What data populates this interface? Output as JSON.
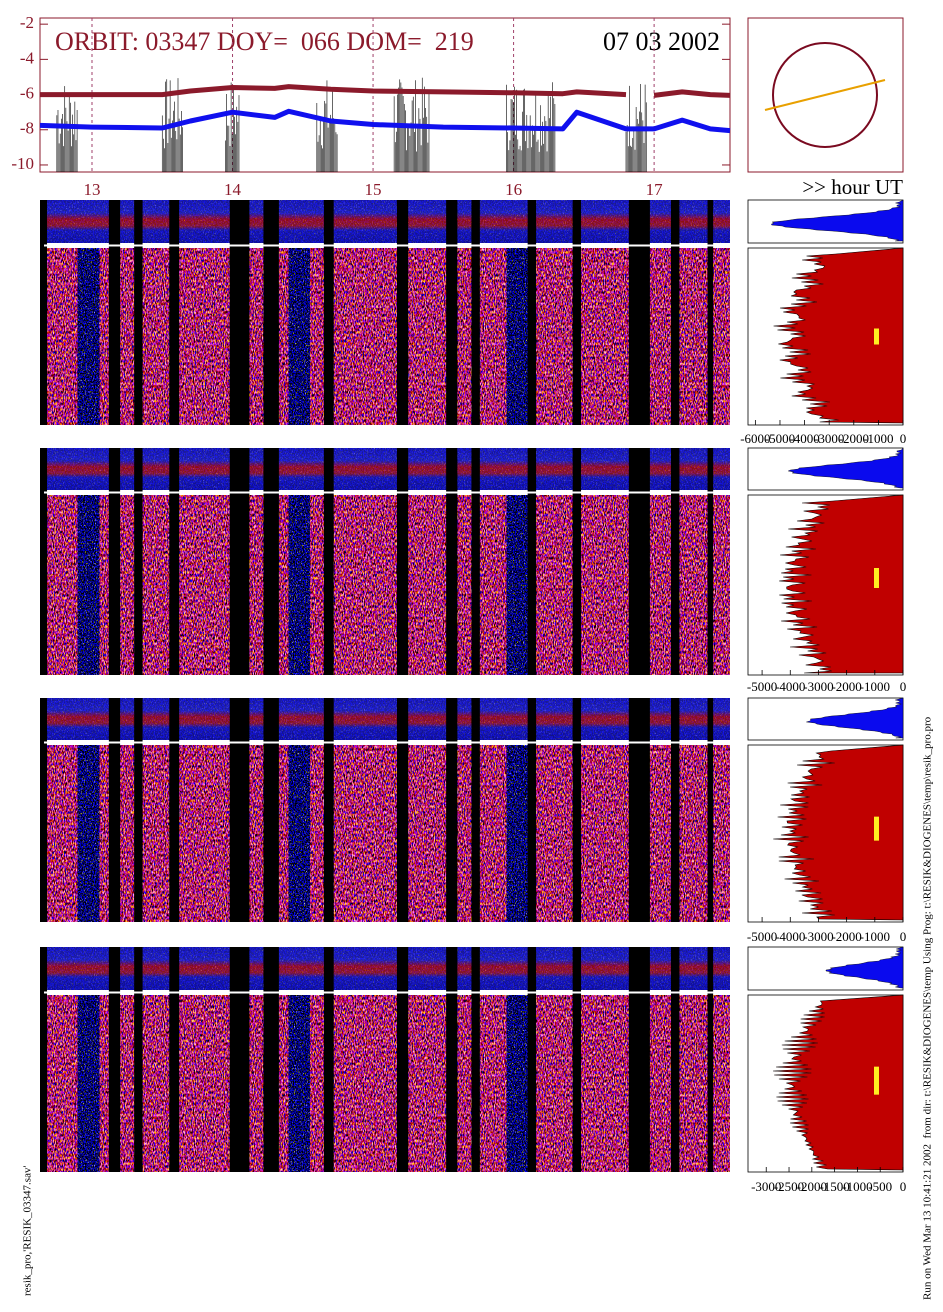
{
  "chart_data": [
    {
      "type": "line",
      "title": "ORBIT: 03347 DOY=  066 DOM=  219",
      "date": "07 03 2002",
      "x_label": ">> hour UT",
      "xlim": [
        12.63,
        17.54
      ],
      "xticks": [
        13,
        14,
        15,
        16,
        17
      ],
      "ylim": [
        -10.4,
        -1.65
      ],
      "yticks": [
        -2,
        -4,
        -6,
        -8,
        -10
      ],
      "grid": true,
      "x": [
        12.63,
        13.0,
        13.5,
        13.7,
        14.0,
        14.3,
        14.4,
        14.7,
        15.0,
        15.5,
        16.0,
        16.35,
        16.45,
        16.8,
        16.9,
        17.0,
        17.2,
        17.4,
        17.54
      ],
      "series": [
        {
          "color": "#8b1a2b",
          "values": [
            -6.0,
            -6.0,
            -6.0,
            -5.8,
            -5.6,
            -5.65,
            -5.55,
            -5.7,
            -5.8,
            -5.85,
            -5.9,
            -5.95,
            -5.85,
            -6.0,
            null,
            -6.05,
            -5.85,
            -6.0,
            -6.05
          ]
        },
        {
          "color": "#1010ee",
          "values": [
            -7.75,
            -7.85,
            -7.9,
            -7.5,
            -7.0,
            -7.3,
            -6.95,
            -7.5,
            -7.7,
            -7.85,
            -7.9,
            -7.95,
            -7.0,
            -7.95,
            -7.95,
            -7.95,
            -7.45,
            -7.95,
            -8.05
          ]
        }
      ]
    },
    {
      "type": "profile",
      "xlim": [
        -6300,
        0
      ],
      "xticks": [
        -6000,
        -5000,
        -4000,
        -3000,
        -2000,
        -1000,
        0
      ]
    },
    {
      "type": "profile",
      "xlim": [
        -5500,
        0
      ],
      "xticks": [
        -5000,
        -4000,
        -3000,
        -2000,
        -1000,
        0
      ]
    },
    {
      "type": "profile",
      "xlim": [
        -5500,
        0
      ],
      "xticks": [
        -5000,
        -4000,
        -3000,
        -2000,
        -1000,
        0
      ]
    },
    {
      "type": "profile",
      "xlim": [
        -3400,
        0
      ],
      "xticks": [
        -3000,
        -2500,
        -2000,
        -1500,
        -1000,
        -500,
        0
      ]
    }
  ],
  "footer": {
    "left": "resik_pro,'RESIK_03347.sav'",
    "right": "Run on Wed Mar 13 10:41:21 2002  from dir: t:\\RESIK&DIOGENES\\temp Using Prog: t:\\RESIK&DIOGENES\\temp\\resik_pro.pro"
  }
}
